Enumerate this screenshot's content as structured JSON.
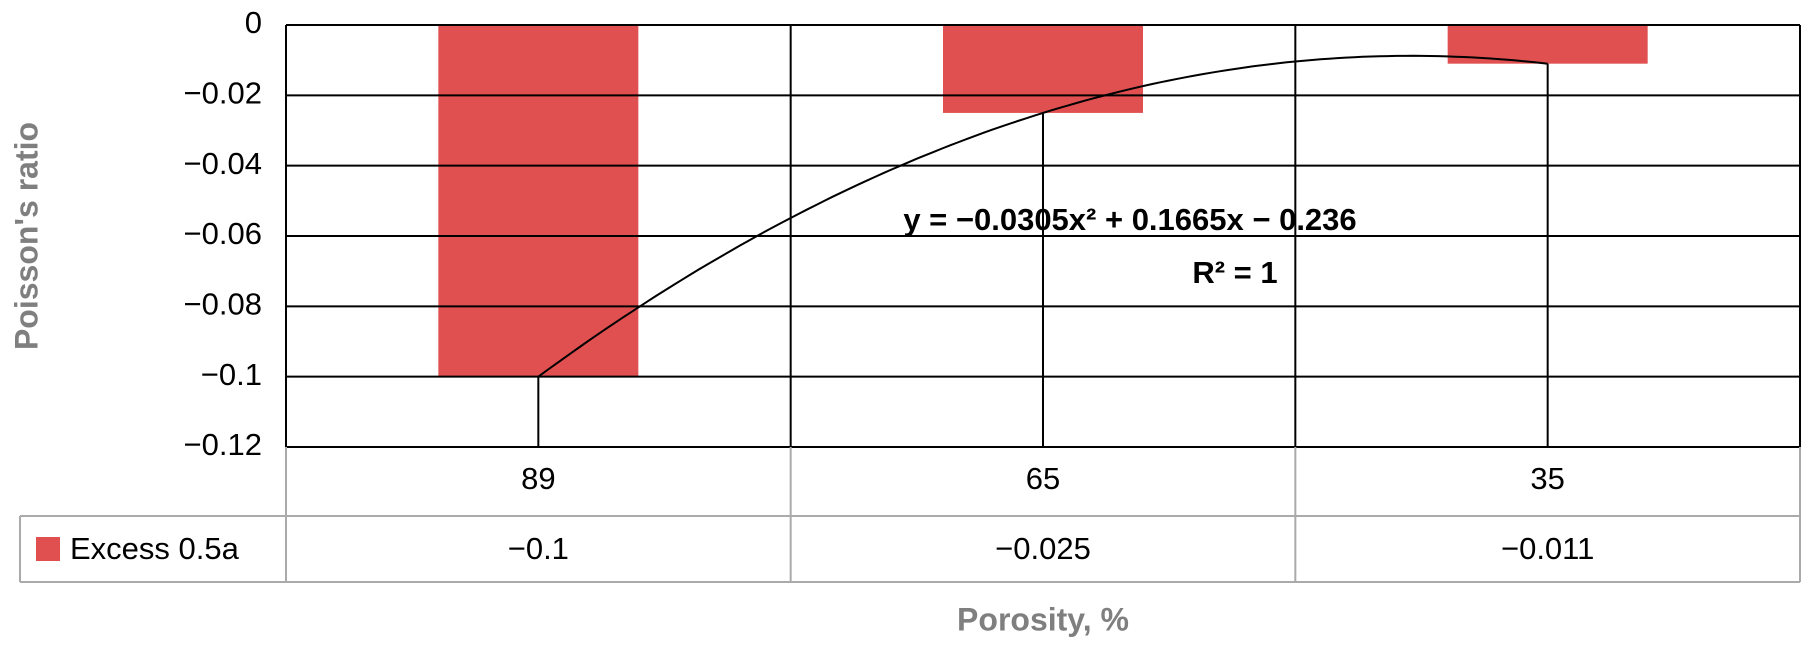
{
  "chart_data": {
    "type": "bar",
    "x_label": "Porosity, %",
    "y_label": "Poisson's ratio",
    "categories": [
      "89",
      "65",
      "35"
    ],
    "series": [
      {
        "name": "Excess 0.5a",
        "color": "#e05050",
        "values": [
          -0.1,
          -0.025,
          -0.011
        ],
        "value_labels": [
          "−0.1",
          "−0.025",
          "−0.011"
        ]
      }
    ],
    "ylim": [
      -0.12,
      0
    ],
    "yticks": [
      {
        "value": -0.12,
        "label": "−0.12"
      },
      {
        "value": -0.1,
        "label": "−0.1"
      },
      {
        "value": -0.08,
        "label": "−0.08"
      },
      {
        "value": -0.06,
        "label": "−0.06"
      },
      {
        "value": -0.04,
        "label": "−0.04"
      },
      {
        "value": -0.02,
        "label": "−0.02"
      },
      0
    ],
    "grid": true,
    "trendline": "polynomial",
    "annotations": [
      "y = −0.0305x² + 0.1665x − 0.236",
      "R² = 1"
    ]
  }
}
